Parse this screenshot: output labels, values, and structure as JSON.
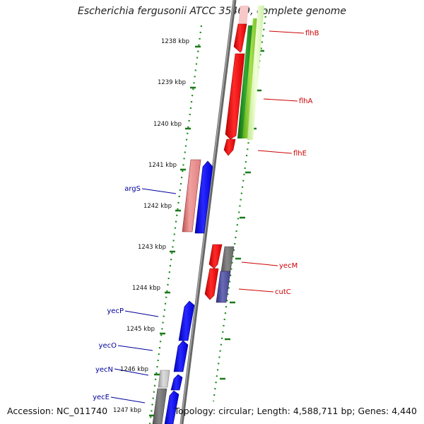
{
  "title": "Escherichia fergusonii ATCC 35469, complete genome",
  "footer": {
    "accession": "Accession: NC_011740",
    "topology": "Topology: circular; Length: 4,588,711 bp; Genes: 4,440"
  },
  "colors": {
    "backbone": "#888888",
    "dots": "#1a8a1a",
    "forward_label": "#cc0000",
    "reverse_label": "#000099",
    "red": "#ff0000",
    "salmon": "#ee8888",
    "blue": "#0000ff",
    "gray": "#777777",
    "light_gray": "#bbbbbb",
    "slate": "#4a4a99",
    "dark_green": "#228b22",
    "green": "#7ccc2c",
    "light_green": "#d8f5a8"
  },
  "kbp_labels": [
    "1238 kbp",
    "1239 kbp",
    "1240 kbp",
    "1241 kbp",
    "1242 kbp",
    "1243 kbp",
    "1244 kbp",
    "1245 kbp",
    "1246 kbp",
    "1247 kbp"
  ],
  "right_labels": [
    "flhB",
    "flhA",
    "flhE",
    "yecM",
    "cutC"
  ],
  "left_labels": [
    "argS",
    "yecP",
    "yecO",
    "yecN",
    "yecE"
  ]
}
